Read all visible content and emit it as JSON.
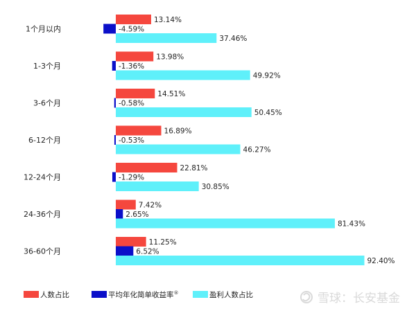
{
  "chart_data": {
    "type": "bar",
    "orientation": "horizontal",
    "categories": [
      "1个月以内",
      "1-3个月",
      "3-6个月",
      "6-12个月",
      "12-24个月",
      "24-36个月",
      "36-60个月"
    ],
    "series": [
      {
        "name": "人数占比",
        "color": "#f5473e",
        "values": [
          13.14,
          13.98,
          14.51,
          16.89,
          22.81,
          7.42,
          11.25
        ],
        "labels": [
          "13.14%",
          "13.98%",
          "14.51%",
          "16.89%",
          "22.81%",
          "7.42%",
          "11.25%"
        ]
      },
      {
        "name": "平均年化简单收益率",
        "superscript": "®",
        "color": "#0b0fc9",
        "values": [
          -4.59,
          -1.36,
          -0.58,
          -0.53,
          -1.29,
          2.65,
          6.52
        ],
        "labels": [
          "-4.59%",
          "-1.36%",
          "-0.58%",
          "-0.53%",
          "-1.29%",
          "2.65%",
          "6.52%"
        ]
      },
      {
        "name": "盈利人数占比",
        "color": "#5ff0fa",
        "values": [
          37.46,
          49.92,
          50.45,
          46.27,
          30.85,
          81.43,
          92.4
        ],
        "labels": [
          "37.46%",
          "49.92%",
          "50.45%",
          "46.27%",
          "30.85%",
          "81.43%",
          "92.40%"
        ]
      }
    ],
    "xlim": [
      -10,
      100
    ],
    "unit": "%",
    "grid": false,
    "legend_position": "bottom-left"
  },
  "watermark": {
    "text": "雪球：长安基金"
  }
}
